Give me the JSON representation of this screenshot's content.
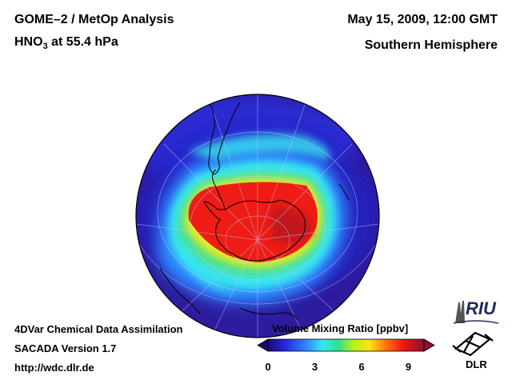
{
  "header": {
    "title_line1": "GOME–2 / MetOp Analysis",
    "title_line2_main": "HNO",
    "title_line2_sub": "3",
    "title_line2_rest": " at 55.4 hPa",
    "datetime": "May 15, 2009, 12:00 GMT",
    "hemisphere": "Southern Hemisphere"
  },
  "footer": {
    "line1": "4DVar Chemical Data Assimilation",
    "line2": "SACADA Version 1.7",
    "line3": "http://wdc.dlr.de"
  },
  "colorbar": {
    "title": "Volume Mixing Ratio [ppbv]",
    "min": 0,
    "max": 10,
    "ticks": [
      {
        "label": "0",
        "value": 0
      },
      {
        "label": "3",
        "value": 3
      },
      {
        "label": "6",
        "value": 6
      },
      {
        "label": "9",
        "value": 9
      }
    ]
  },
  "logos": {
    "riu": "RIU",
    "dlr": "DLR"
  }
}
